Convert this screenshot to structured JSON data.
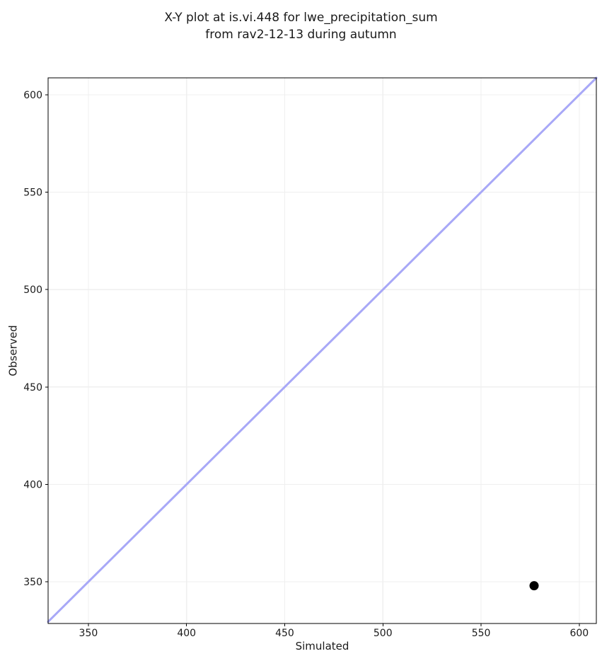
{
  "page": {
    "background_color": "#ffffff",
    "text_color": "#1a1a1a"
  },
  "chart_data": {
    "type": "scatter",
    "title": "X-Y plot at is.vi.448 for lwe_precipitation_sum\nfrom rav2-12-13 during autumn",
    "xlabel": "Simulated",
    "ylabel": "Observed",
    "xlim": [
      329.5,
      608.7
    ],
    "ylim": [
      328.6,
      608.7
    ],
    "xticks": [
      350,
      400,
      450,
      500,
      550,
      600
    ],
    "yticks": [
      350,
      400,
      450,
      500,
      550,
      600
    ],
    "grid": true,
    "legend": "none",
    "points": [
      {
        "x": 577,
        "y": 348
      }
    ],
    "identity_line": {
      "present": true,
      "from": 329.5,
      "to": 608.7,
      "color": "#a8a8f7",
      "width": 3
    },
    "point_style": {
      "color": "#000000",
      "radius": 6.5
    },
    "grid_color": "#efefef",
    "spine_color": "#000000",
    "tick_color": "#000000"
  }
}
